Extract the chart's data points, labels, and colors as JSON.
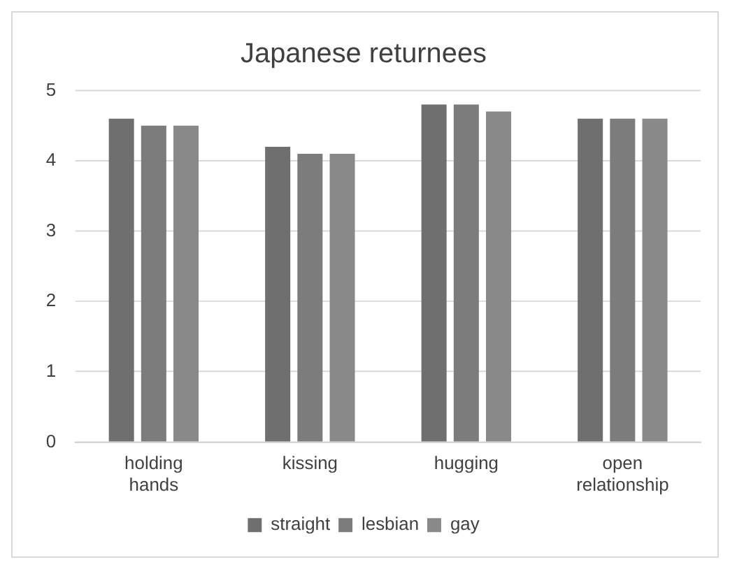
{
  "chart_data": {
    "type": "bar",
    "title": "Japanese returnees",
    "categories": [
      "holding hands",
      "kissing",
      "hugging",
      "open relationship"
    ],
    "series": [
      {
        "name": "straight",
        "color": "#6f6f6f",
        "values": [
          4.6,
          4.2,
          4.8,
          4.6
        ]
      },
      {
        "name": "lesbian",
        "color": "#7c7c7c",
        "values": [
          4.5,
          4.1,
          4.8,
          4.6
        ]
      },
      {
        "name": "gay",
        "color": "#898989",
        "values": [
          4.5,
          4.1,
          4.7,
          4.6
        ]
      }
    ],
    "ylim": [
      0,
      5
    ],
    "yticks": [
      0,
      1,
      2,
      3,
      4,
      5
    ],
    "grid": "y",
    "legend": "bottom"
  }
}
